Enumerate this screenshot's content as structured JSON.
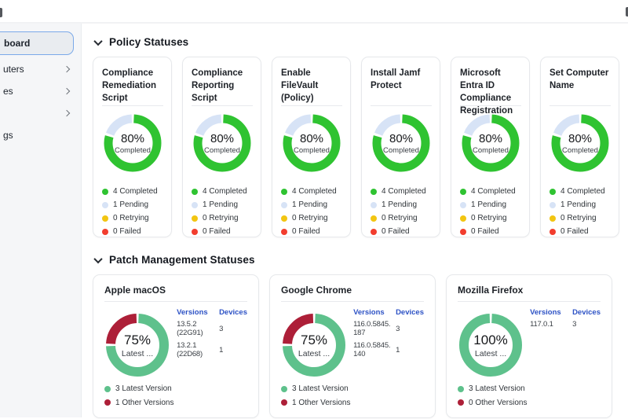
{
  "topbar": {
    "left_icon": "menu-icon-cutoff",
    "right_icon": "toolbar-icon-cutoff"
  },
  "sidebar": {
    "items": [
      {
        "label": "board",
        "selected": true,
        "has_chevron": false
      },
      {
        "label": "uters",
        "selected": false,
        "has_chevron": true
      },
      {
        "label": "es",
        "selected": false,
        "has_chevron": true
      },
      {
        "label": "",
        "selected": false,
        "has_chevron": true
      },
      {
        "label": "gs",
        "selected": false,
        "has_chevron": false
      }
    ]
  },
  "colors": {
    "policy_completed": "#2fc331",
    "policy_pending": "#d7e3f6",
    "policy_retrying": "#f2c511",
    "policy_failed": "#f23d2e",
    "patch_latest": "#5ec18c",
    "patch_other": "#ad1f38",
    "link_blue": "#2d52c5"
  },
  "policy_section": {
    "title": "Policy Statuses",
    "donut_segments": [
      {
        "value": 80,
        "color": "#2fc331"
      },
      {
        "value": 20,
        "color": "#d7e3f6"
      }
    ],
    "legend": [
      {
        "label": "4 Completed",
        "color": "#2fc331"
      },
      {
        "label": "1 Pending",
        "color": "#d7e3f6"
      },
      {
        "label": "0 Retrying",
        "color": "#f2c511"
      },
      {
        "label": "0 Failed",
        "color": "#f23d2e"
      }
    ],
    "cards": [
      {
        "title": "Compliance Remediation Script",
        "percent_label": "80%",
        "center_sub": "Completed"
      },
      {
        "title": "Compliance Reporting Script",
        "percent_label": "80%",
        "center_sub": "Completed"
      },
      {
        "title": "Enable FileVault (Policy)",
        "percent_label": "80%",
        "center_sub": "Completed"
      },
      {
        "title": "Install Jamf Protect",
        "percent_label": "80%",
        "center_sub": "Completed"
      },
      {
        "title": "Microsoft Entra ID Compliance Registration",
        "percent_label": "80%",
        "center_sub": "Completed"
      },
      {
        "title": "Set Computer Name",
        "percent_label": "80%",
        "center_sub": "Completed"
      }
    ]
  },
  "patch_section": {
    "title": "Patch Management Statuses",
    "col_versions": "Versions",
    "col_devices": "Devices",
    "cards": [
      {
        "title": "Apple macOS",
        "percent_label": "75%",
        "center_sub": "Latest ...",
        "segments": [
          {
            "value": 75,
            "color": "#5ec18c"
          },
          {
            "value": 25,
            "color": "#ad1f38"
          }
        ],
        "rows": [
          {
            "version": "13.5.2 (22G91)",
            "devices": "3"
          },
          {
            "version": "13.2.1 (22D68)",
            "devices": "1"
          }
        ],
        "legend": [
          {
            "label": "3 Latest Version",
            "color": "#5ec18c"
          },
          {
            "label": "1 Other Versions",
            "color": "#ad1f38"
          }
        ]
      },
      {
        "title": "Google Chrome",
        "percent_label": "75%",
        "center_sub": "Latest ...",
        "segments": [
          {
            "value": 75,
            "color": "#5ec18c"
          },
          {
            "value": 25,
            "color": "#ad1f38"
          }
        ],
        "rows": [
          {
            "version": "116.0.5845.187",
            "devices": "3"
          },
          {
            "version": "116.0.5845.140",
            "devices": "1"
          }
        ],
        "legend": [
          {
            "label": "3 Latest Version",
            "color": "#5ec18c"
          },
          {
            "label": "1 Other Versions",
            "color": "#ad1f38"
          }
        ]
      },
      {
        "title": "Mozilla Firefox",
        "percent_label": "100%",
        "center_sub": "Latest ...",
        "segments": [
          {
            "value": 100,
            "color": "#5ec18c"
          }
        ],
        "rows": [
          {
            "version": "117.0.1",
            "devices": "3"
          }
        ],
        "legend": [
          {
            "label": "3 Latest Version",
            "color": "#5ec18c"
          },
          {
            "label": "0 Other Versions",
            "color": "#ad1f38"
          }
        ]
      }
    ]
  },
  "chart_data": [
    {
      "type": "pie",
      "title": "Policy status donut (shown on 6 policy cards)",
      "labels": [
        "Completed",
        "Pending",
        "Retrying",
        "Failed"
      ],
      "values": [
        4,
        1,
        0,
        0
      ],
      "center_text": "80% Completed"
    },
    {
      "type": "pie",
      "title": "Apple macOS versions",
      "labels": [
        "Latest Version",
        "Other Versions"
      ],
      "values": [
        3,
        1
      ],
      "center_text": "75% Latest ..."
    },
    {
      "type": "pie",
      "title": "Google Chrome versions",
      "labels": [
        "Latest Version",
        "Other Versions"
      ],
      "values": [
        3,
        1
      ],
      "center_text": "75% Latest ..."
    },
    {
      "type": "pie",
      "title": "Mozilla Firefox versions",
      "labels": [
        "Latest Version",
        "Other Versions"
      ],
      "values": [
        3,
        0
      ],
      "center_text": "100% Latest ..."
    }
  ]
}
